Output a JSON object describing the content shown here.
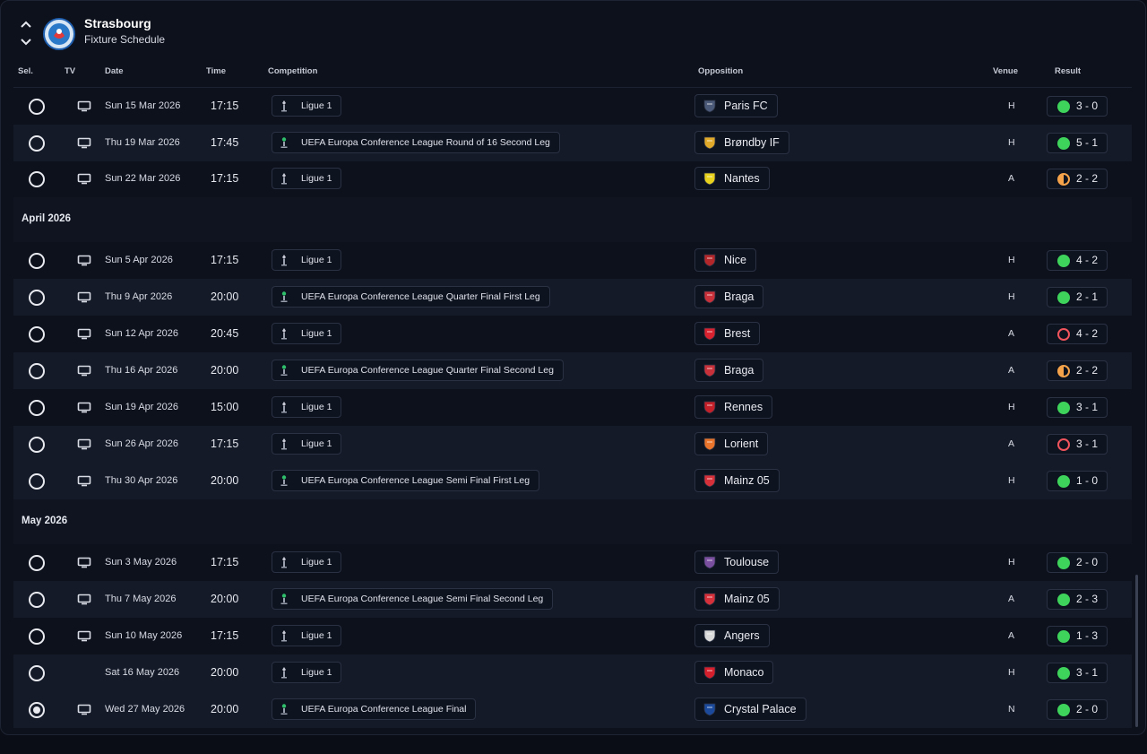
{
  "header": {
    "club_name": "Strasbourg",
    "subtitle": "Fixture Schedule"
  },
  "columns": {
    "sel": "Sel.",
    "tv": "TV",
    "date": "Date",
    "time": "Time",
    "competition": "Competition",
    "opposition": "Opposition",
    "venue": "Venue",
    "result": "Result"
  },
  "months": [
    "April 2026",
    "May 2026"
  ],
  "fixtures": [
    {
      "selected": false,
      "tv": true,
      "date": "Sun 15 Mar 2026",
      "time": "17:15",
      "competition": "Ligue 1",
      "competition_icon": "ligue1-icon",
      "opposition": "Paris FC",
      "opposition_color": "#4a5a78",
      "venue": "H",
      "result": "3 - 0",
      "outcome": "win"
    },
    {
      "selected": false,
      "tv": true,
      "date": "Thu 19 Mar 2026",
      "time": "17:45",
      "competition": "UEFA Europa Conference League Round of 16  Second Leg",
      "competition_icon": "conference-league-icon",
      "opposition": "Brøndby IF",
      "opposition_color": "#e0a92a",
      "venue": "H",
      "result": "5 - 1",
      "outcome": "win"
    },
    {
      "selected": false,
      "tv": true,
      "date": "Sun 22 Mar 2026",
      "time": "17:15",
      "competition": "Ligue 1",
      "competition_icon": "ligue1-icon",
      "opposition": "Nantes",
      "opposition_color": "#e8d21e",
      "venue": "A",
      "result": "2 - 2",
      "outcome": "draw"
    },
    {
      "selected": false,
      "tv": true,
      "date": "Sun 5 Apr 2026",
      "time": "17:15",
      "competition": "Ligue 1",
      "competition_icon": "ligue1-icon",
      "opposition": "Nice",
      "opposition_color": "#b3262a",
      "venue": "H",
      "result": "4 - 2",
      "outcome": "win"
    },
    {
      "selected": false,
      "tv": true,
      "date": "Thu 9 Apr 2026",
      "time": "20:00",
      "competition": "UEFA Europa Conference League Quarter Final First Leg",
      "competition_icon": "conference-league-icon",
      "opposition": "Braga",
      "opposition_color": "#c8303a",
      "venue": "H",
      "result": "2 - 1",
      "outcome": "win"
    },
    {
      "selected": false,
      "tv": true,
      "date": "Sun 12 Apr 2026",
      "time": "20:45",
      "competition": "Ligue 1",
      "competition_icon": "ligue1-icon",
      "opposition": "Brest",
      "opposition_color": "#d8222f",
      "venue": "A",
      "result": "4 - 2",
      "outcome": "loss"
    },
    {
      "selected": false,
      "tv": true,
      "date": "Thu 16 Apr 2026",
      "time": "20:00",
      "competition": "UEFA Europa Conference League Quarter Final Second Leg",
      "competition_icon": "conference-league-icon",
      "opposition": "Braga",
      "opposition_color": "#c8303a",
      "venue": "A",
      "result": "2 - 2",
      "outcome": "draw"
    },
    {
      "selected": false,
      "tv": true,
      "date": "Sun 19 Apr 2026",
      "time": "15:00",
      "competition": "Ligue 1",
      "competition_icon": "ligue1-icon",
      "opposition": "Rennes",
      "opposition_color": "#c4202a",
      "venue": "H",
      "result": "3 - 1",
      "outcome": "win"
    },
    {
      "selected": false,
      "tv": true,
      "date": "Sun 26 Apr 2026",
      "time": "17:15",
      "competition": "Ligue 1",
      "competition_icon": "ligue1-icon",
      "opposition": "Lorient",
      "opposition_color": "#e8732a",
      "venue": "A",
      "result": "3 - 1",
      "outcome": "loss"
    },
    {
      "selected": false,
      "tv": true,
      "date": "Thu 30 Apr 2026",
      "time": "20:00",
      "competition": "UEFA Europa Conference League Semi Final First Leg",
      "competition_icon": "conference-league-icon",
      "opposition": "Mainz 05",
      "opposition_color": "#d6303a",
      "venue": "H",
      "result": "1 - 0",
      "outcome": "win"
    },
    {
      "selected": false,
      "tv": true,
      "date": "Sun 3 May 2026",
      "time": "17:15",
      "competition": "Ligue 1",
      "competition_icon": "ligue1-icon",
      "opposition": "Toulouse",
      "opposition_color": "#7a4fa0",
      "venue": "H",
      "result": "2 - 0",
      "outcome": "win"
    },
    {
      "selected": false,
      "tv": true,
      "date": "Thu 7 May 2026",
      "time": "20:00",
      "competition": "UEFA Europa Conference League Semi Final Second Leg",
      "competition_icon": "conference-league-icon",
      "opposition": "Mainz 05",
      "opposition_color": "#d6303a",
      "venue": "A",
      "result": "2 - 3",
      "outcome": "win"
    },
    {
      "selected": false,
      "tv": true,
      "date": "Sun 10 May 2026",
      "time": "17:15",
      "competition": "Ligue 1",
      "competition_icon": "ligue1-icon",
      "opposition": "Angers",
      "opposition_color": "#d9d9d9",
      "venue": "A",
      "result": "1 - 3",
      "outcome": "win"
    },
    {
      "selected": false,
      "tv": false,
      "date": "Sat 16 May 2026",
      "time": "20:00",
      "competition": "Ligue 1",
      "competition_icon": "ligue1-icon",
      "opposition": "Monaco",
      "opposition_color": "#d61f2c",
      "venue": "H",
      "result": "3 - 1",
      "outcome": "win"
    },
    {
      "selected": true,
      "tv": true,
      "date": "Wed 27 May 2026",
      "time": "20:00",
      "competition": "UEFA Europa Conference League Final",
      "competition_icon": "conference-league-icon",
      "opposition": "Crystal Palace",
      "opposition_color": "#1b4a9c",
      "venue": "N",
      "result": "2 - 0",
      "outcome": "win"
    }
  ],
  "colors": {
    "win": "#3ed35a",
    "loss": "#f0545c",
    "draw": "#f5a34a"
  }
}
